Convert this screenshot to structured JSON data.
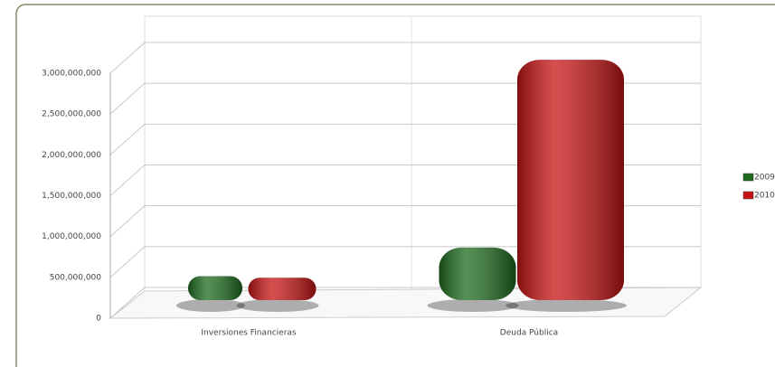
{
  "chart_data": {
    "type": "bar",
    "categories": [
      "Inversiones Financieras",
      "Deuda Pública"
    ],
    "series": [
      {
        "name": "2009",
        "color": "#1e6b1e",
        "values": [
          50000000,
          400000000
        ]
      },
      {
        "name": "2010",
        "color": "#c81414",
        "values": [
          30000000,
          2700000000
        ]
      }
    ],
    "ylim": [
      0,
      3000000000
    ],
    "yticks": [
      0,
      {
        "value": 500000000,
        "label": "500,000,000"
      },
      {
        "value": 1000000000,
        "label": "1,000,000,000"
      },
      {
        "value": 1500000000,
        "label": "1,500,000,000"
      },
      {
        "value": 2000000000,
        "label": "2,000,000,000"
      },
      {
        "value": 2500000000,
        "label": "2,500,000,000"
      },
      {
        "value": 3000000000,
        "label": "3,000,000,000"
      }
    ],
    "grid": true,
    "legend": "right"
  }
}
